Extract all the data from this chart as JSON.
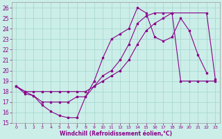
{
  "xlabel": "Windchill (Refroidissement éolien,°C)",
  "background_color": "#cceee8",
  "grid_color": "#aad8d2",
  "line_color": "#880088",
  "xlim": [
    -0.5,
    23.5
  ],
  "ylim": [
    15,
    26.5
  ],
  "xticks": [
    0,
    1,
    2,
    3,
    4,
    5,
    6,
    7,
    8,
    9,
    10,
    11,
    12,
    13,
    14,
    15,
    16,
    17,
    18,
    19,
    20,
    21,
    22,
    23
  ],
  "yticks": [
    15,
    16,
    17,
    18,
    19,
    20,
    21,
    22,
    23,
    24,
    25,
    26
  ],
  "series_x": [
    [
      0,
      1,
      2,
      3,
      4,
      5,
      6,
      7,
      8,
      9,
      10,
      11,
      12,
      13,
      14,
      15,
      16,
      17,
      18,
      19,
      20,
      21,
      22
    ],
    [
      0,
      1,
      2,
      3,
      4,
      5,
      6,
      7,
      8,
      9,
      10,
      11,
      12,
      13,
      14,
      15,
      16,
      17,
      18,
      22,
      23
    ],
    [
      0,
      1,
      2,
      3,
      4,
      5,
      6,
      7,
      8,
      9,
      10,
      11,
      12,
      13,
      14,
      15,
      16,
      17,
      18,
      19,
      20,
      21,
      22,
      23
    ]
  ],
  "series_y": [
    [
      18.5,
      18.0,
      17.6,
      16.7,
      16.1,
      15.7,
      15.5,
      15.5,
      17.5,
      19.0,
      21.2,
      23.0,
      23.5,
      24.0,
      26.0,
      25.5,
      23.2,
      22.8,
      23.2,
      25.0,
      23.8,
      21.5,
      19.8
    ],
    [
      18.5,
      18.0,
      18.0,
      18.0,
      18.0,
      18.0,
      18.0,
      18.0,
      18.0,
      18.5,
      19.0,
      19.5,
      20.0,
      21.0,
      22.5,
      23.8,
      24.5,
      25.0,
      25.5,
      25.5,
      19.2
    ],
    [
      18.5,
      17.8,
      17.6,
      17.0,
      17.0,
      17.0,
      17.0,
      17.5,
      17.5,
      18.5,
      19.5,
      20.0,
      21.0,
      22.5,
      24.5,
      25.2,
      25.5,
      25.5,
      25.5,
      19.0,
      19.0,
      19.0,
      19.0,
      19.0
    ]
  ]
}
